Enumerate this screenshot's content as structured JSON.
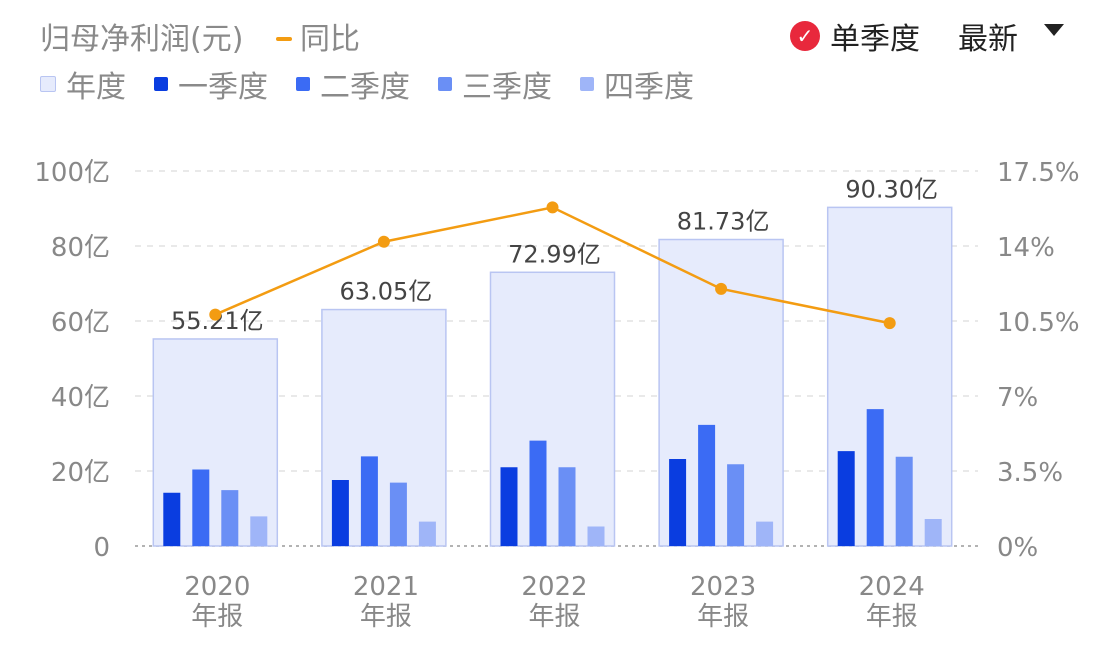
{
  "header": {
    "title": "归母净利润(元)",
    "yoy_label": "同比",
    "toggle_label": "单季度",
    "latest_label": "最新"
  },
  "legend": [
    {
      "label": "年度",
      "color": "#E6EBFC",
      "border": "#B9C5F2"
    },
    {
      "label": "一季度",
      "color": "#0A3DE0"
    },
    {
      "label": "二季度",
      "color": "#3B6BF4"
    },
    {
      "label": "三季度",
      "color": "#6A8FF5"
    },
    {
      "label": "四季度",
      "color": "#9FB5F8"
    }
  ],
  "chart_data": {
    "type": "bar",
    "categories": [
      "2020\n年报",
      "2021\n年报",
      "2022\n年报",
      "2023\n年报",
      "2024\n年报"
    ],
    "category_years": [
      "2020",
      "2021",
      "2022",
      "2023",
      "2024"
    ],
    "category_sub": "年报",
    "annual": {
      "values": [
        55.21,
        63.05,
        72.99,
        81.73,
        90.3
      ],
      "labels": [
        "55.21亿",
        "63.05亿",
        "72.99亿",
        "81.73亿",
        "90.30亿"
      ]
    },
    "series": [
      {
        "name": "一季度",
        "values": [
          14.2,
          17.6,
          21.0,
          23.2,
          25.3
        ]
      },
      {
        "name": "二季度",
        "values": [
          20.4,
          23.9,
          28.1,
          32.3,
          36.5
        ]
      },
      {
        "name": "三季度",
        "values": [
          14.9,
          16.9,
          21.0,
          21.8,
          23.8
        ]
      },
      {
        "name": "四季度",
        "values": [
          7.9,
          6.5,
          5.2,
          6.5,
          7.2
        ]
      }
    ],
    "yoy": {
      "name": "同比",
      "values": [
        10.8,
        14.2,
        15.8,
        12.0,
        10.4
      ]
    },
    "y_left": {
      "min": 0,
      "max": 100,
      "ticks": [
        0,
        20,
        40,
        60,
        80,
        100
      ],
      "tick_labels": [
        "0",
        "20亿",
        "40亿",
        "60亿",
        "80亿",
        "100亿"
      ]
    },
    "y_right": {
      "min": 0,
      "max": 17.5,
      "tick_labels": [
        "0%",
        "3.5%",
        "7%",
        "10.5%",
        "14%",
        "17.5%"
      ]
    },
    "grid": true,
    "colors": {
      "annual_fill": "#E6EBFC",
      "annual_border": "#B9C5F2",
      "yoy_line": "#F39C12",
      "grid": "#E2E2E2",
      "axis_text": "#888888",
      "label_text": "#444444"
    }
  }
}
